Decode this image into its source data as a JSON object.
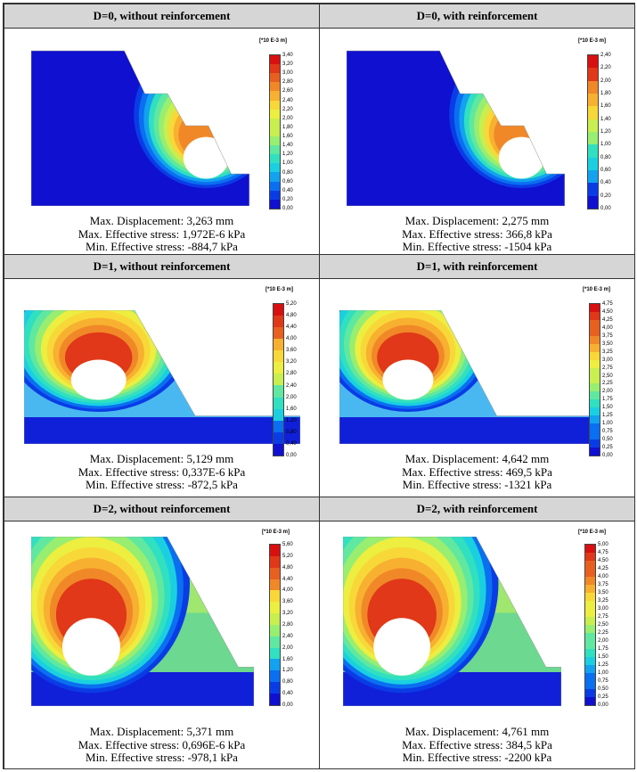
{
  "unit_label": "[*10 E-3 m]",
  "panels": [
    {
      "title": "D=0, without reinforcement",
      "stats": [
        "Max. Displacement: 3,263 mm",
        "Max. Effective stress: 1,972E-6 kPa",
        "Min. Effective stress: -884,7 kPa"
      ],
      "legend": [
        "3,40",
        "3,20",
        "3,00",
        "2,80",
        "2,60",
        "2,40",
        "2,20",
        "2,00",
        "1,80",
        "1,60",
        "1,40",
        "1,20",
        "1,00",
        "0,80",
        "0,60",
        "0,40",
        "0,20",
        "0,00"
      ]
    },
    {
      "title": "D=0, with reinforcement",
      "stats": [
        "Max. Displacement: 2,275 mm",
        "Max. Effective stress: 366,8 kPa",
        "Min. Effective stress: -1504 kPa"
      ],
      "legend": [
        "2,40",
        "2,20",
        "2,00",
        "1,80",
        "1,60",
        "1,40",
        "1,20",
        "1,00",
        "0,80",
        "0,60",
        "0,40",
        "0,20",
        "0,00"
      ]
    },
    {
      "title": "D=1, without reinforcement",
      "stats": [
        "Max. Displacement: 5,129 mm",
        "Max. Effective stress: 0,337E-6 kPa",
        "Min. Effective stress: -872,5 kPa"
      ],
      "legend": [
        "5,20",
        "4,80",
        "4,40",
        "4,00",
        "3,60",
        "3,20",
        "2,80",
        "2,40",
        "2,00",
        "1,60",
        "1,20",
        "0,80",
        "0,40",
        "0,00"
      ]
    },
    {
      "title": "D=1, with reinforcement",
      "stats": [
        "Max. Displacement: 4,642 mm",
        "Max. Effective stress: 469,5 kPa",
        "Min. Effective stress: -1321 kPa"
      ],
      "legend": [
        "4,75",
        "4,50",
        "4,25",
        "4,00",
        "3,75",
        "3,50",
        "3,25",
        "3,00",
        "2,75",
        "2,50",
        "2,25",
        "2,00",
        "1,75",
        "1,50",
        "1,25",
        "1,00",
        "0,75",
        "0,50",
        "0,25",
        "0,00"
      ]
    },
    {
      "title": "D=2, without reinforcement",
      "stats": [
        "Max. Displacement: 5,371 mm",
        "Max. Effective stress: 0,696E-6 kPa",
        "Min. Effective stress: -978,1 kPa"
      ],
      "legend": [
        "5,60",
        "5,20",
        "4,80",
        "4,40",
        "4,00",
        "3,60",
        "3,20",
        "2,80",
        "2,40",
        "2,00",
        "1,60",
        "1,20",
        "0,80",
        "0,40",
        "0,00"
      ]
    },
    {
      "title": "D=2, with reinforcement",
      "stats": [
        "Max. Displacement: 4,761 mm",
        "Max. Effective stress: 384,5 kPa",
        "Min. Effective stress: -2200 kPa"
      ],
      "legend": [
        "5,00",
        "4,75",
        "4,50",
        "4,25",
        "4,00",
        "3,75",
        "3,50",
        "3,25",
        "3,00",
        "2,75",
        "2,50",
        "2,25",
        "2,00",
        "1,75",
        "1,50",
        "1,25",
        "1,00",
        "0,75",
        "0,50",
        "0,25",
        "0,00"
      ]
    }
  ]
}
